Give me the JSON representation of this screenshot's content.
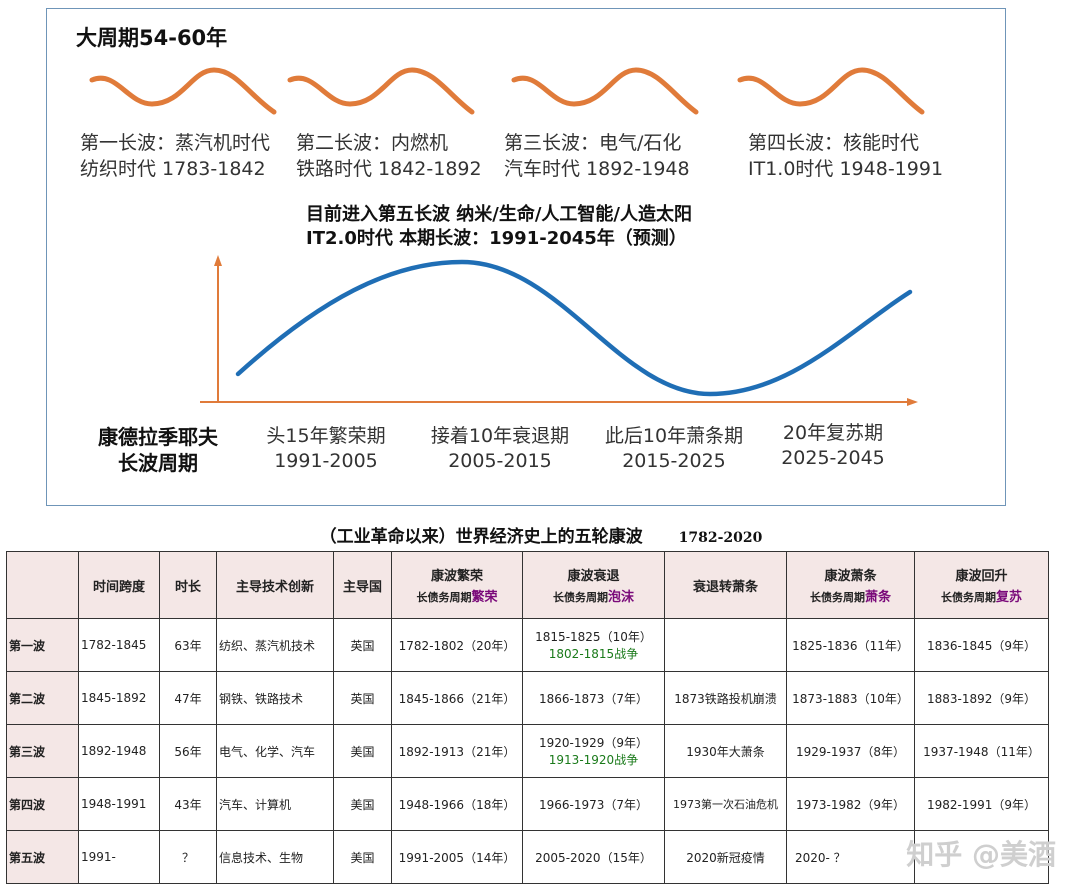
{
  "diagram": {
    "title": "大周期54-60年",
    "waves": [
      {
        "line1": "第一长波：蒸汽机时代",
        "line2": "纺织时代  1783-1842"
      },
      {
        "line1": "第二长波：内燃机",
        "line2": "铁路时代  1842-1892"
      },
      {
        "line1": "第三长波：电气/石化",
        "line2": "汽车时代    1892-1948"
      },
      {
        "line1": "第四长波：核能时代",
        "line2": "IT1.0时代  1948-1991"
      }
    ],
    "headline1": "目前进入第五长波    纳米/生命/人工智能/人造太阳",
    "headline2": "IT2.0时代  本期长波：1991-2045年（预测）",
    "kondratiev_line1": "康德拉季耶夫",
    "kondratiev_line2": "长波周期",
    "phases": [
      {
        "name": "头15年繁荣期",
        "years": "1991-2005"
      },
      {
        "name": "接着10年衰退期",
        "years": "2005-2015"
      },
      {
        "name": "此后10年萧条期",
        "years": "2015-2025"
      },
      {
        "name": "20年复苏期",
        "years": "2025-2045"
      }
    ],
    "colors": {
      "small_wave": "#e07b3a",
      "big_wave": "#1f6eb5",
      "axis": "#e07b3a",
      "border": "#6f95b8"
    }
  },
  "table": {
    "title": "（工业革命以来）世界经济史上的五轮康波",
    "year_range": "1782-2020",
    "headers": {
      "span": "时间跨度",
      "duration": "时长",
      "tech": "主导技术创新",
      "country": "主导国",
      "prosperity": "康波繁荣",
      "prosperity_sub": "长债务周期",
      "prosperity_hl": "繁荣",
      "recession": "康波衰退",
      "recession_sub": "长债务周期",
      "recession_hl": "泡沫",
      "transition": "衰退转萧条",
      "depression": "康波萧条",
      "depression_sub": "长债务周期",
      "depression_hl": "萧条",
      "recovery": "康波回升",
      "recovery_sub": "长债务周期",
      "recovery_hl": "复苏"
    },
    "rows": [
      {
        "name": "第一波",
        "span": "1782-1845",
        "duration": "63年",
        "tech": "纺织、蒸汽机技术",
        "country": "英国",
        "prosperity": "1782-1802（20年）",
        "recession": "1815-1825（10年）",
        "recession_note": "1802-1815战争",
        "transition": "",
        "depression": "1825-1836（11年）",
        "recovery": "1836-1845（9年）"
      },
      {
        "name": "第二波",
        "span": "1845-1892",
        "duration": "47年",
        "tech": "钢铁、铁路技术",
        "country": "英国",
        "prosperity": "1845-1866（21年）",
        "recession": "1866-1873（7年）",
        "recession_note": "",
        "transition": "1873铁路投机崩溃",
        "depression": "1873-1883（10年）",
        "recovery": "1883-1892（9年）"
      },
      {
        "name": "第三波",
        "span": "1892-1948",
        "duration": "56年",
        "tech": "电气、化学、汽车",
        "country": "美国",
        "prosperity": "1892-1913（21年）",
        "recession": "1920-1929（9年）",
        "recession_note": "1913-1920战争",
        "transition": "1930年大萧条",
        "depression": "1929-1937（8年）",
        "recovery": "1937-1948（11年）"
      },
      {
        "name": "第四波",
        "span": "1948-1991",
        "duration": "43年",
        "tech": "汽车、计算机",
        "country": "美国",
        "prosperity": "1948-1966（18年）",
        "recession": "1966-1973（7年）",
        "recession_note": "",
        "transition": "1973第一次石油危机",
        "depression": "1973-1982（9年）",
        "recovery": "1982-1991（9年）"
      },
      {
        "name": "第五波",
        "span": "1991-",
        "duration": "？",
        "tech": "信息技术、生物",
        "country": "美国",
        "prosperity": "1991-2005（14年）",
        "recession": "2005-2020（15年）",
        "recession_note": "",
        "transition": "2020新冠疫情",
        "depression": "2020-  ？",
        "recovery": ""
      }
    ]
  },
  "watermark": "知乎 @美酒"
}
